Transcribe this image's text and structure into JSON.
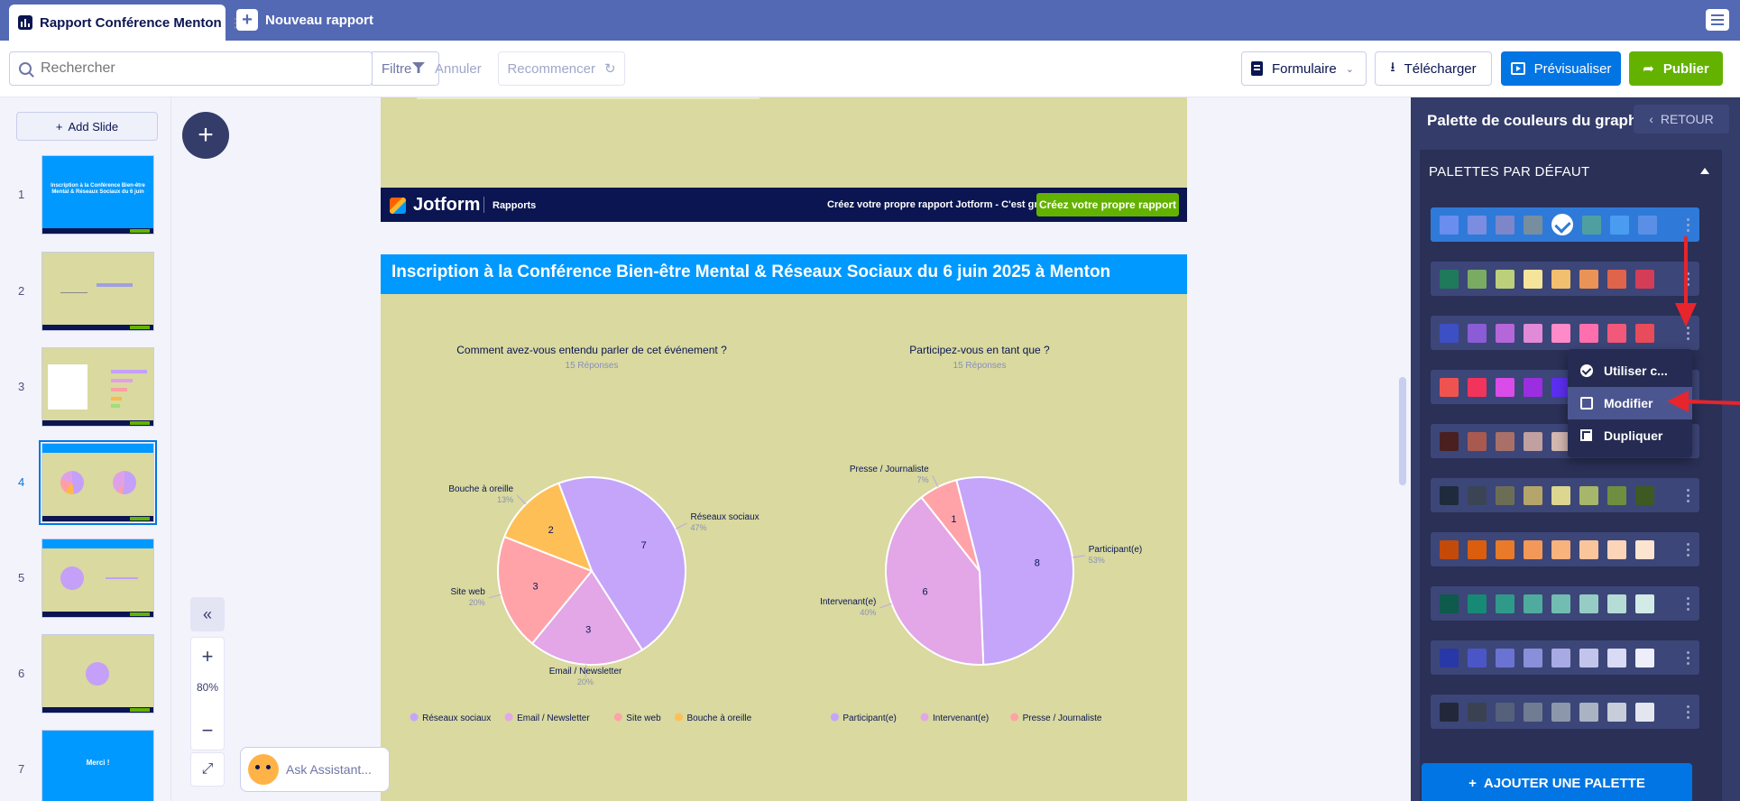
{
  "app": {
    "doc_tab_title": "Rapport Conférence Menton",
    "new_tab_label": "Nouveau rapport"
  },
  "toolbar": {
    "search_placeholder": "Rechercher",
    "filter_label": "Filtre",
    "annuler_label": "Annuler",
    "recommencer_label": "Recommencer",
    "formulaire_label": "Formulaire",
    "telecharger_label": "Télécharger",
    "previsualiser_label": "Prévisualiser",
    "publier_label": "Publier"
  },
  "sidebar": {
    "add_slide_label": "Add Slide",
    "slides": [
      {
        "num": "1",
        "title": "Inscription à la Conférence Bien-être Mental & Réseaux Sociaux du 6 juin"
      },
      {
        "num": "2"
      },
      {
        "num": "3"
      },
      {
        "num": "4"
      },
      {
        "num": "5"
      },
      {
        "num": "6"
      },
      {
        "num": "7",
        "title": "Merci !"
      }
    ]
  },
  "zoom": {
    "value": "80%"
  },
  "assistant": {
    "label": "Ask Assistant..."
  },
  "slide_footer": {
    "brand": "Jotform",
    "product": "Rapports",
    "cta_text": "Créez votre propre rapport Jotform - C'est gratuit",
    "cta_button": "Créez votre propre rapport"
  },
  "slide": {
    "title": "Inscription à la Conférence Bien-être Mental & Réseaux Sociaux du 6 juin 2025 à Menton"
  },
  "chart_data": [
    {
      "type": "pie",
      "title": "Comment avez-vous entendu parler de cet événement ?",
      "subtitle": "15 Réponses",
      "categories": [
        "Réseaux sociaux",
        "Email / Newsletter",
        "Site web",
        "Bouche à oreille"
      ],
      "values": [
        7,
        3,
        3,
        2
      ],
      "percent_labels": [
        "47%",
        "20%",
        "20%",
        "13%"
      ],
      "colors": [
        "#c4a5fa",
        "#e3a6e6",
        "#ffa3a8",
        "#ffbf57"
      ],
      "legend": "bottom"
    },
    {
      "type": "pie",
      "title": "Participez-vous en tant que ?",
      "subtitle": "15 Réponses",
      "categories": [
        "Participant(e)",
        "Intervenant(e)",
        "Presse / Journaliste"
      ],
      "values": [
        8,
        6,
        1
      ],
      "percent_labels": [
        "53%",
        "40%",
        "7%"
      ],
      "colors": [
        "#c4a5fa",
        "#e3a6e6",
        "#ffa3a8"
      ],
      "legend": "bottom"
    }
  ],
  "right_panel": {
    "title": "Palette de couleurs du graphique",
    "back_label": "RETOUR",
    "section_label": "PALETTES PAR DÉFAUT",
    "add_palette_label": "AJOUTER UNE PALETTE",
    "palettes": [
      {
        "selected": true,
        "colors": [
          "#6a8ef0",
          "#7b8de0",
          "#7d86c9",
          "#778e9f",
          "#ffffff",
          "#4f9fa0",
          "#4a9cf0",
          "#5a8fe5"
        ]
      },
      {
        "colors": [
          "#1f7a5c",
          "#7aab63",
          "#bcd07c",
          "#f5e49a",
          "#f2bf6f",
          "#ea9356",
          "#e0634b",
          "#d43d57"
        ]
      },
      {
        "colors": [
          "#3d4fc4",
          "#8a5cd6",
          "#b566d9",
          "#e08ad8",
          "#ff8ac9",
          "#ff6fae",
          "#f2587a",
          "#e84b5a"
        ]
      },
      {
        "colors": [
          "#ef5350",
          "#f2335b",
          "#d94ce8",
          "#9b2ee0",
          "#5b2ef0"
        ]
      },
      {
        "colors": [
          "#4a1f1f",
          "#a85a50",
          "#a87068",
          "#c0a0a0",
          "#d2b6b0"
        ]
      },
      {
        "colors": [
          "#1e2b3c",
          "#3a4454",
          "#6b6e55",
          "#b5a56a",
          "#dcd690",
          "#a6b66a",
          "#6e8f40",
          "#3d5a22"
        ]
      },
      {
        "colors": [
          "#c44a0a",
          "#db5d0e",
          "#e87a2a",
          "#f2995a",
          "#f7b27d",
          "#fbc59c",
          "#fcd5b8",
          "#fde4d0"
        ]
      },
      {
        "colors": [
          "#0e5a4c",
          "#168a74",
          "#2f9a8a",
          "#4fab9d",
          "#72bdb2",
          "#95cdc5",
          "#b6dcd6",
          "#d2ebe6"
        ]
      },
      {
        "colors": [
          "#2838a6",
          "#4a56c6",
          "#6b73d2",
          "#8a8fd9",
          "#a7aae3",
          "#c2c4ec",
          "#d9daf3",
          "#edeefa"
        ]
      },
      {
        "colors": [
          "#22283a",
          "#3a4252",
          "#55607a",
          "#707c92",
          "#8c97ab",
          "#aab3c3",
          "#c7cdd9",
          "#e3e6ee"
        ]
      }
    ]
  },
  "context_menu": {
    "items": [
      "Utiliser c...",
      "Modifier",
      "Dupliquer"
    ]
  }
}
